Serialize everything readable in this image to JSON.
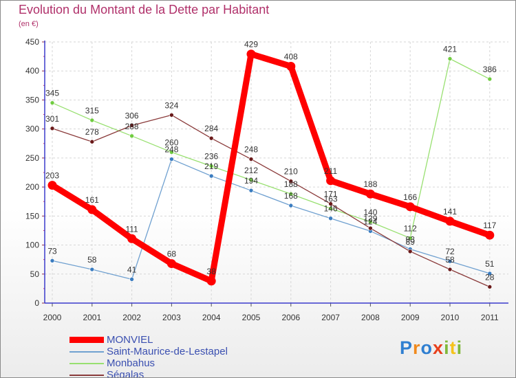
{
  "title": "Evolution du Montant de la Dette par Habitant",
  "subtitle": "(en €)",
  "logo": {
    "text": "Proxiti",
    "letter_colors": [
      "#2f7fd1",
      "#f08a1e",
      "#2f7fd1",
      "#e8401c",
      "#7fb83a",
      "#f5c31a",
      "#7fb83a"
    ]
  },
  "chart_data": {
    "type": "line",
    "x": [
      2000,
      2001,
      2002,
      2003,
      2004,
      2005,
      2006,
      2007,
      2008,
      2009,
      2010,
      2011
    ],
    "xlabels": [
      "2000",
      "2001",
      "2002",
      "2003",
      "2004",
      "2005",
      "2006",
      "2007",
      "2008",
      "2009",
      "2010",
      "2011"
    ],
    "ylim": [
      0,
      450
    ],
    "yticks": [
      0,
      50,
      100,
      150,
      200,
      250,
      300,
      350,
      400,
      450
    ],
    "grid": true,
    "legend_position": "bottom",
    "series": [
      {
        "name": "MONVIEL",
        "color": "#ff0000",
        "marker": "#ff0000",
        "emphasis": true,
        "values": [
          203,
          161,
          111,
          68,
          38,
          429,
          408,
          211,
          188,
          166,
          141,
          117
        ]
      },
      {
        "name": "Saint-Maurice-de-Lestapel",
        "color": "#6fa0d0",
        "marker": "#3a7cc0",
        "emphasis": false,
        "values": [
          73,
          58,
          41,
          248,
          219,
          194,
          168,
          146,
          124,
          93,
          72,
          51
        ]
      },
      {
        "name": "Monbahus",
        "color": "#98e070",
        "marker": "#70cc40",
        "emphasis": false,
        "values": [
          345,
          315,
          288,
          260,
          236,
          212,
          188,
          163,
          140,
          112,
          421,
          386
        ]
      },
      {
        "name": "Ségalas",
        "color": "#8a3a3a",
        "marker": "#6a1a1a",
        "emphasis": false,
        "values": [
          301,
          278,
          306,
          324,
          284,
          248,
          210,
          171,
          129,
          89,
          58,
          28
        ]
      }
    ]
  }
}
